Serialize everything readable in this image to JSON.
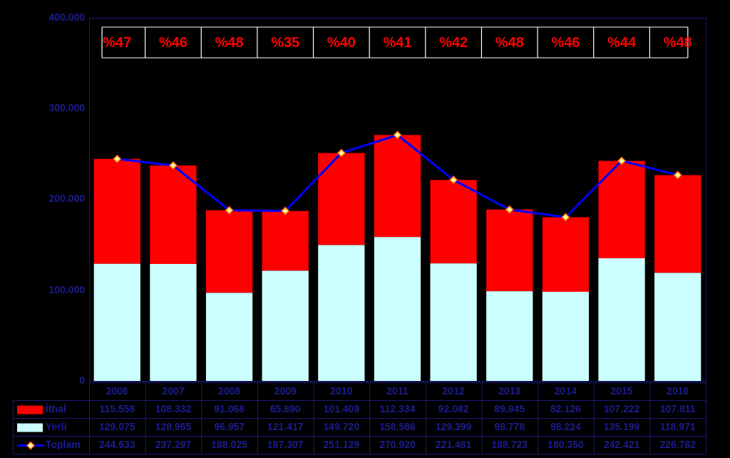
{
  "chart_data": {
    "type": "bar",
    "stacked": true,
    "grid": false,
    "categories": [
      "2006",
      "2007",
      "2008",
      "2009",
      "2010",
      "2011",
      "2012",
      "2013",
      "2014",
      "2015",
      "2016"
    ],
    "series": [
      {
        "name": "İthal",
        "color": "#ff0000",
        "values": [
          115558,
          108332,
          91068,
          65890,
          101409,
          112334,
          92082,
          89945,
          82126,
          107222,
          107811
        ],
        "value_labels": [
          "115.558",
          "108.332",
          "91.068",
          "65.890",
          "101.409",
          "112.334",
          "92.082",
          "89.945",
          "82.126",
          "107.222",
          "107.811"
        ]
      },
      {
        "name": "Yerli",
        "color": "#ccffff",
        "values": [
          129075,
          128965,
          96957,
          121417,
          149720,
          158586,
          129399,
          98778,
          98224,
          135199,
          118971
        ],
        "value_labels": [
          "129.075",
          "128.965",
          "96.957",
          "121.417",
          "149.720",
          "158.586",
          "129.399",
          "98.778",
          "98.224",
          "135.199",
          "118.971"
        ]
      },
      {
        "name": "Toplam",
        "type": "line",
        "color": "#0000ff",
        "marker": "diamond",
        "values": [
          244633,
          237297,
          188025,
          187307,
          251129,
          270920,
          221481,
          188723,
          180350,
          242421,
          226782
        ],
        "value_labels": [
          "244.633",
          "237.297",
          "188.025",
          "187.307",
          "251.129",
          "270.920",
          "221.481",
          "188.723",
          "180.350",
          "242.421",
          "226.782"
        ]
      }
    ],
    "annotations": [
      "%47",
      "%46",
      "%48",
      "%35",
      "%40",
      "%41",
      "%42",
      "%48",
      "%46",
      "%44",
      "%48"
    ],
    "ylim": [
      0,
      400000
    ],
    "yticks": [
      0,
      {
        "value": 100000,
        "label": "100.000"
      },
      {
        "value": 200000,
        "label": "200.000"
      },
      {
        "value": 300000,
        "label": "300.000"
      },
      {
        "value": 400000,
        "label": "400.000"
      }
    ]
  }
}
